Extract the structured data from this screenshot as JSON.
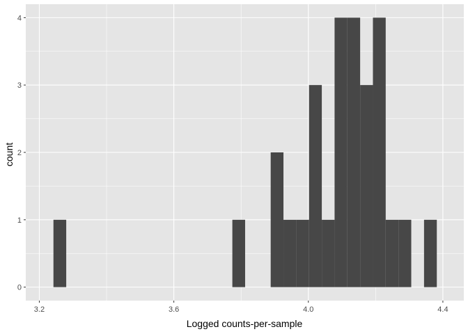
{
  "chart_data": {
    "type": "bar",
    "title": "",
    "xlabel": "Logged counts-per-sample",
    "ylabel": "count",
    "xlim": [
      3.2,
      4.4
    ],
    "ylim": [
      0,
      4
    ],
    "x_ticks": [
      3.2,
      3.6,
      4.0,
      4.4
    ],
    "x_tick_labels": [
      "3.2",
      "3.6",
      "4.0",
      "4.4"
    ],
    "y_ticks": [
      0,
      1,
      2,
      3,
      4
    ],
    "y_tick_labels": [
      "0",
      "1",
      "2",
      "3",
      "4"
    ],
    "bin_width": 0.038,
    "bins": [
      {
        "x0": 3.242,
        "x1": 3.28,
        "count": 1
      },
      {
        "x0": 3.774,
        "x1": 3.812,
        "count": 1
      },
      {
        "x0": 3.888,
        "x1": 3.926,
        "count": 2
      },
      {
        "x0": 3.926,
        "x1": 3.964,
        "count": 1
      },
      {
        "x0": 3.964,
        "x1": 4.002,
        "count": 1
      },
      {
        "x0": 4.002,
        "x1": 4.04,
        "count": 3
      },
      {
        "x0": 4.04,
        "x1": 4.078,
        "count": 1
      },
      {
        "x0": 4.078,
        "x1": 4.116,
        "count": 4
      },
      {
        "x0": 4.116,
        "x1": 4.154,
        "count": 4
      },
      {
        "x0": 4.154,
        "x1": 4.192,
        "count": 3
      },
      {
        "x0": 4.192,
        "x1": 4.23,
        "count": 4
      },
      {
        "x0": 4.23,
        "x1": 4.268,
        "count": 1
      },
      {
        "x0": 4.268,
        "x1": 4.306,
        "count": 1
      },
      {
        "x0": 4.344,
        "x1": 4.382,
        "count": 1
      }
    ],
    "grid": true,
    "colors": {
      "panel_background": "#e5e5e5",
      "grid_major": "#ffffff",
      "bar_fill": "#474747",
      "tick_color": "#333333"
    }
  }
}
